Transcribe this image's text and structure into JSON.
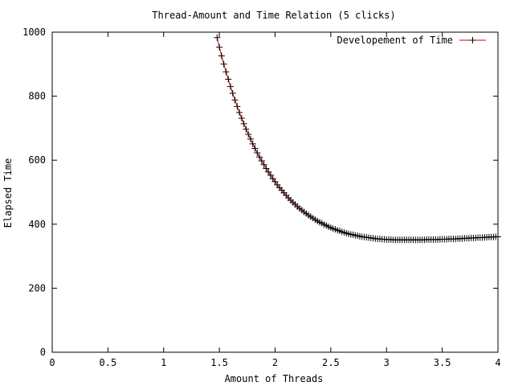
{
  "chart_data": {
    "type": "line",
    "title": "Thread-Amount and Time Relation (5 clicks)",
    "xlabel": "Amount of Threads",
    "ylabel": "Elapsed Time",
    "xlim": [
      0,
      4
    ],
    "ylim": [
      0,
      1000
    ],
    "x_ticks": [
      0,
      0.5,
      1,
      1.5,
      2,
      2.5,
      3,
      3.5,
      4
    ],
    "x_tick_labels": [
      "0",
      "0.5",
      "1",
      "1.5",
      "2",
      "2.5",
      "3",
      "3.5",
      "4"
    ],
    "y_ticks": [
      0,
      200,
      400,
      600,
      800,
      1000
    ],
    "y_tick_labels": [
      "0",
      "200",
      "400",
      "600",
      "800",
      "1000"
    ],
    "grid": false,
    "legend_position": "top-right",
    "series": [
      {
        "name": "Developement of Time",
        "color": "#cc0000",
        "marker": "plus",
        "x": [
          1.48,
          1.5,
          1.52,
          1.54,
          1.56,
          1.58,
          1.6,
          1.62,
          1.64,
          1.66,
          1.68,
          1.7,
          1.72,
          1.74,
          1.76,
          1.78,
          1.8,
          1.82,
          1.84,
          1.86,
          1.88,
          1.9,
          1.92,
          1.94,
          1.96,
          1.98,
          2.0,
          2.02,
          2.04,
          2.06,
          2.08,
          2.1,
          2.12,
          2.14,
          2.16,
          2.18,
          2.2,
          2.22,
          2.24,
          2.26,
          2.28,
          2.3,
          2.32,
          2.34,
          2.36,
          2.38,
          2.4,
          2.42,
          2.44,
          2.46,
          2.48,
          2.5,
          2.52,
          2.54,
          2.56,
          2.58,
          2.6,
          2.62,
          2.64,
          2.66,
          2.68,
          2.7,
          2.72,
          2.74,
          2.76,
          2.78,
          2.8,
          2.82,
          2.84,
          2.86,
          2.88,
          2.9,
          2.92,
          2.94,
          2.96,
          2.98,
          3.0,
          3.02,
          3.04,
          3.06,
          3.08,
          3.1,
          3.12,
          3.14,
          3.16,
          3.18,
          3.2,
          3.22,
          3.24,
          3.26,
          3.28,
          3.3,
          3.32,
          3.34,
          3.36,
          3.38,
          3.4,
          3.42,
          3.44,
          3.46,
          3.48,
          3.5,
          3.52,
          3.54,
          3.56,
          3.58,
          3.6,
          3.62,
          3.64,
          3.66,
          3.68,
          3.7,
          3.72,
          3.74,
          3.76,
          3.78,
          3.8,
          3.82,
          3.84,
          3.86,
          3.88,
          3.9,
          3.92,
          3.94,
          3.96,
          3.98,
          4.0
        ],
        "y": [
          983,
          953,
          926,
          900,
          876,
          853,
          830,
          809,
          788,
          768,
          749,
          731,
          714,
          697,
          681,
          666,
          651,
          637,
          623,
          610,
          598,
          586,
          574,
          563,
          553,
          542,
          533,
          523,
          514,
          506,
          498,
          490,
          482,
          475,
          468,
          462,
          455,
          449,
          444,
          438,
          433,
          428,
          423,
          419,
          414,
          410,
          406,
          403,
          399,
          396,
          392,
          389,
          386,
          384,
          381,
          379,
          376,
          374,
          372,
          370,
          368,
          367,
          365,
          364,
          362,
          361,
          360,
          359,
          358,
          357,
          356,
          355,
          354,
          354,
          353,
          353,
          352,
          352,
          352,
          351,
          351,
          351,
          351,
          351,
          351,
          351,
          351,
          351,
          351,
          351,
          351,
          351,
          351,
          351,
          352,
          352,
          352,
          352,
          352,
          352,
          353,
          353,
          353,
          353,
          354,
          354,
          354,
          354,
          355,
          355,
          355,
          356,
          356,
          356,
          357,
          357,
          357,
          358,
          358,
          358,
          359,
          359,
          360,
          360,
          360,
          361,
          361
        ]
      }
    ]
  }
}
